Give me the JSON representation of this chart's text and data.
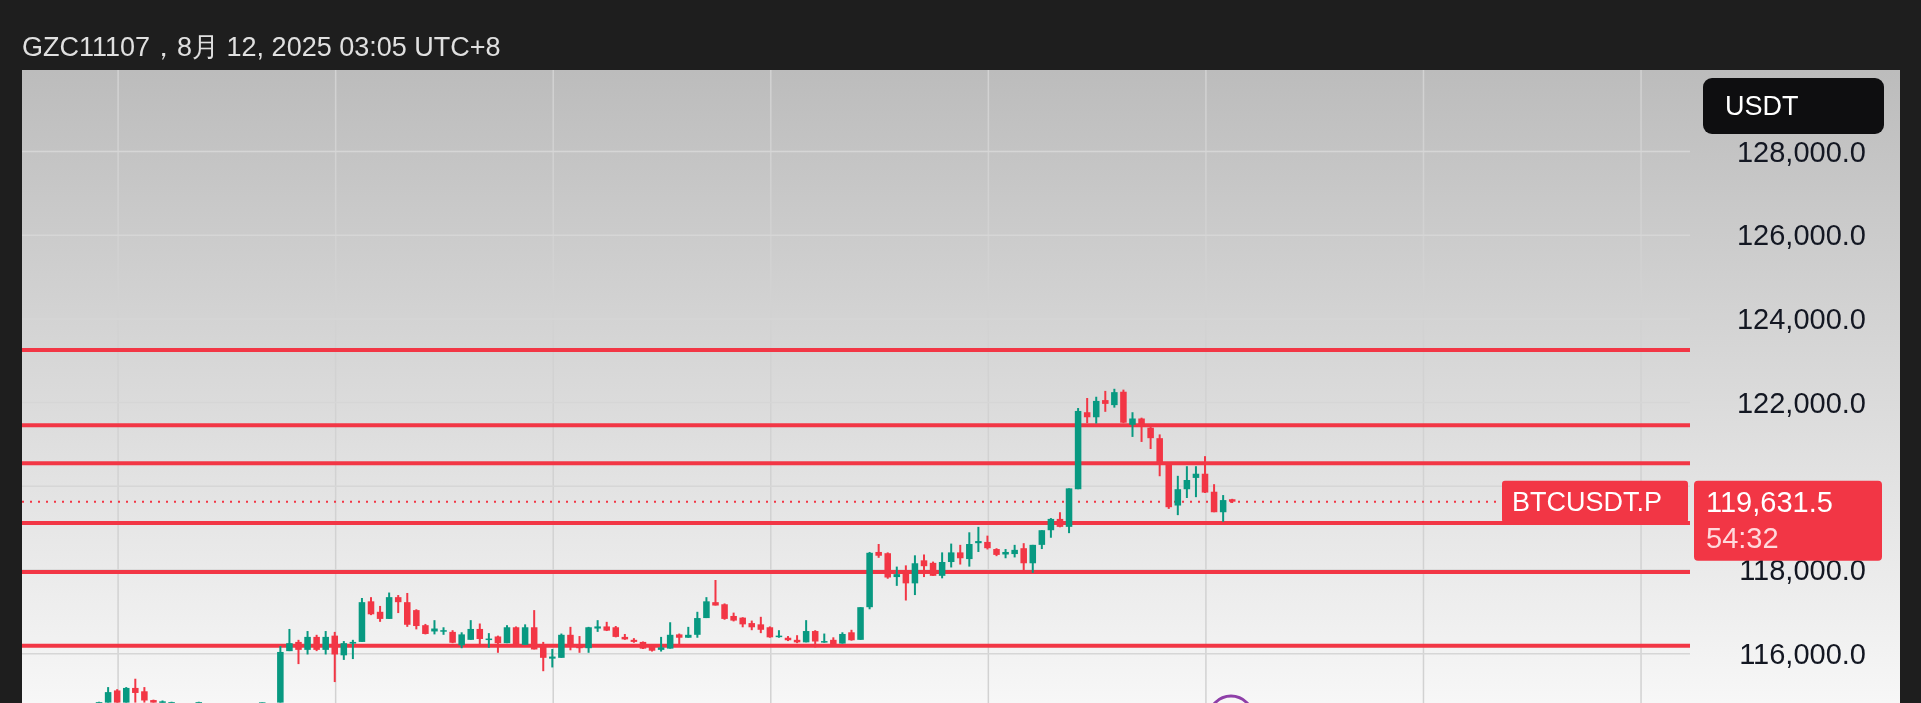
{
  "chart_data": {
    "type": "candlestick",
    "title": "GZC11107，8月 12, 2025 03:05 UTC+8",
    "ylabel": "USDT",
    "categories": [
      null,
      null,
      null,
      null,
      null,
      null,
      null,
      null,
      null,
      null,
      null,
      null,
      null,
      null,
      null,
      null,
      null,
      null,
      null,
      null,
      null,
      null,
      null,
      null,
      null,
      null,
      null,
      null,
      null,
      null,
      null,
      null,
      null,
      null,
      null,
      null,
      null,
      null,
      null,
      null,
      null,
      null,
      null,
      null,
      null,
      null,
      null,
      null,
      null,
      null,
      null,
      null,
      null,
      null,
      null,
      null,
      null,
      null,
      null,
      null,
      null,
      null,
      null,
      null,
      null,
      null,
      null,
      null,
      null,
      null,
      null,
      null,
      null,
      null,
      null,
      null,
      null,
      null,
      null,
      null,
      null,
      null,
      null,
      null,
      null,
      null,
      null,
      null,
      null,
      null,
      null,
      null,
      null,
      null,
      null,
      null,
      null,
      null,
      null,
      null,
      null,
      null,
      null,
      null,
      null,
      null,
      null,
      null,
      null,
      null,
      null,
      null,
      null,
      null,
      null,
      null,
      null,
      null,
      null,
      null,
      null,
      null,
      null,
      null,
      null,
      null,
      null,
      null,
      null,
      null,
      null,
      null,
      null,
      null,
      null,
      null,
      null,
      null,
      null,
      null,
      null,
      null,
      null,
      null,
      null,
      null,
      null,
      null,
      null,
      null,
      null,
      null,
      null,
      null,
      null,
      null,
      null,
      null,
      null,
      null,
      null,
      null,
      null,
      null,
      null,
      null,
      null,
      null,
      null,
      null,
      null,
      null,
      null,
      null,
      null,
      null,
      null,
      null,
      null,
      null,
      null,
      null,
      null,
      null
    ],
    "ohlc": [
      null,
      null,
      null,
      null,
      null,
      null,
      null,
      null,
      [
        114830,
        114850,
        114830,
        114840
      ],
      [
        114830,
        115200,
        114830,
        115080
      ],
      [
        115120,
        115150,
        114830,
        114830
      ],
      [
        114830,
        115200,
        114830,
        115180
      ],
      [
        115180,
        115400,
        114830,
        115060
      ],
      [
        115100,
        115200,
        114830,
        114880
      ],
      [
        114890,
        114900,
        114830,
        114830
      ],
      [
        114830,
        114880,
        114830,
        114860
      ],
      [
        114830,
        114850,
        114830,
        114840
      ],
      null,
      null,
      [
        114830,
        114850,
        114830,
        114840
      ],
      null,
      null,
      null,
      null,
      null,
      null,
      [
        114830,
        114840,
        114830,
        114835
      ],
      null,
      [
        114830,
        116180,
        114830,
        116040
      ],
      [
        116060,
        116590,
        116060,
        116250
      ],
      [
        116280,
        116330,
        115750,
        116090
      ],
      [
        116090,
        116540,
        115980,
        116400
      ],
      [
        116400,
        116450,
        116060,
        116090
      ],
      [
        116090,
        116540,
        115980,
        116400
      ],
      [
        116430,
        116520,
        115320,
        115980
      ],
      [
        115960,
        116300,
        115850,
        116250
      ],
      [
        116240,
        116330,
        115870,
        116280
      ],
      [
        116280,
        117330,
        116280,
        117230
      ],
      [
        117250,
        117350,
        116920,
        116940
      ],
      [
        117000,
        117140,
        116760,
        116830
      ],
      [
        116830,
        117460,
        116830,
        117350
      ],
      [
        117350,
        117400,
        116970,
        117230
      ],
      [
        117230,
        117450,
        116640,
        116690
      ],
      [
        117040,
        117060,
        116580,
        116660
      ],
      [
        116680,
        116710,
        116460,
        116470
      ],
      [
        116530,
        116800,
        116460,
        116600
      ],
      [
        116530,
        116630,
        116450,
        116560
      ],
      [
        116520,
        116560,
        116250,
        116260
      ],
      [
        116200,
        116510,
        116130,
        116460
      ],
      [
        116330,
        116800,
        116330,
        116590
      ],
      [
        116590,
        116720,
        116160,
        116350
      ],
      [
        116340,
        116490,
        116140,
        116360
      ],
      [
        116410,
        116430,
        116020,
        116250
      ],
      [
        116250,
        116680,
        116250,
        116630
      ],
      [
        116630,
        116650,
        116200,
        116210
      ],
      [
        116210,
        116700,
        116210,
        116630
      ],
      [
        116630,
        117040,
        116100,
        116100
      ],
      [
        116230,
        116280,
        115580,
        115900
      ],
      [
        115880,
        116110,
        115670,
        115930
      ],
      [
        115900,
        116480,
        115900,
        116450
      ],
      [
        116450,
        116640,
        116080,
        116230
      ],
      [
        116230,
        116420,
        116020,
        116130
      ],
      [
        116130,
        116640,
        116020,
        116630
      ],
      [
        116600,
        116800,
        116520,
        116650
      ],
      [
        116650,
        116760,
        116540,
        116550
      ],
      [
        116630,
        116660,
        116390,
        116400
      ],
      [
        116400,
        116470,
        116330,
        116340
      ],
      [
        116330,
        116370,
        116260,
        116280
      ],
      [
        116280,
        116290,
        116110,
        116120
      ],
      [
        116160,
        116230,
        116050,
        116070
      ],
      [
        116090,
        116400,
        116050,
        116150
      ],
      [
        116120,
        116750,
        116120,
        116450
      ],
      [
        116460,
        116480,
        116220,
        116380
      ],
      [
        116380,
        116640,
        116380,
        116450
      ],
      [
        116450,
        117000,
        116380,
        116850
      ],
      [
        116850,
        117350,
        116850,
        117250
      ],
      [
        117230,
        117760,
        117150,
        117150
      ],
      [
        117180,
        117200,
        116810,
        116830
      ],
      [
        116900,
        116980,
        116770,
        116790
      ],
      [
        116860,
        116870,
        116630,
        116700
      ],
      [
        116730,
        116790,
        116560,
        116630
      ],
      [
        116700,
        116880,
        116490,
        116570
      ],
      [
        116630,
        116650,
        116380,
        116390
      ],
      [
        116400,
        116560,
        116380,
        116430
      ],
      [
        116380,
        116420,
        116300,
        116320
      ],
      [
        116330,
        116440,
        116250,
        116270
      ],
      [
        116270,
        116800,
        116270,
        116540
      ],
      [
        116540,
        116560,
        116150,
        116290
      ],
      [
        116280,
        116480,
        116260,
        116300
      ],
      [
        116330,
        116390,
        116170,
        116230
      ],
      [
        116240,
        116510,
        116240,
        116470
      ],
      [
        116510,
        116570,
        116310,
        116320
      ],
      [
        116330,
        117110,
        116330,
        117110
      ],
      [
        117110,
        118430,
        117060,
        118410
      ],
      [
        118430,
        118620,
        118290,
        118340
      ],
      [
        118400,
        118420,
        117790,
        117820
      ],
      [
        117830,
        118080,
        117620,
        117900
      ],
      [
        117920,
        118110,
        117270,
        117680
      ],
      [
        117680,
        118350,
        117400,
        118160
      ],
      [
        118230,
        118370,
        117830,
        118090
      ],
      [
        118170,
        118200,
        117860,
        117860
      ],
      [
        117860,
        118420,
        117800,
        118190
      ],
      [
        118190,
        118630,
        118060,
        118420
      ],
      [
        118420,
        118600,
        118130,
        118280
      ],
      [
        118260,
        118900,
        118080,
        118620
      ],
      [
        118640,
        119030,
        118430,
        118690
      ],
      [
        118670,
        118820,
        118490,
        118520
      ],
      [
        118500,
        118520,
        118330,
        118360
      ],
      [
        118370,
        118500,
        118280,
        118430
      ],
      [
        118380,
        118600,
        118300,
        118480
      ],
      [
        118520,
        118640,
        117930,
        118160
      ],
      [
        118160,
        118600,
        117930,
        118600
      ],
      [
        118600,
        118950,
        118500,
        118950
      ],
      [
        118950,
        119240,
        118770,
        119220
      ],
      [
        119220,
        119380,
        119020,
        119030
      ],
      [
        119030,
        119950,
        118880,
        119950
      ],
      [
        119930,
        121870,
        119930,
        121800
      ],
      [
        121770,
        122110,
        121510,
        121650
      ],
      [
        121650,
        122140,
        121500,
        122040
      ],
      [
        122060,
        122280,
        121780,
        121970
      ],
      [
        121940,
        122330,
        121880,
        122250
      ],
      [
        122260,
        122310,
        121510,
        121520
      ],
      [
        121470,
        121770,
        121180,
        121620
      ],
      [
        121620,
        121640,
        121060,
        121420
      ],
      [
        121400,
        121420,
        120890,
        121150
      ],
      [
        121150,
        121240,
        120240,
        120550
      ],
      [
        120510,
        120550,
        119460,
        119500
      ],
      [
        119540,
        120250,
        119310,
        119930
      ],
      [
        119930,
        120480,
        119720,
        120150
      ],
      [
        120200,
        120480,
        119740,
        120300
      ],
      [
        120300,
        120720,
        119840,
        119850
      ],
      [
        119870,
        120050,
        119380,
        119380
      ],
      [
        119380,
        119790,
        119150,
        119670
      ],
      [
        119690,
        119700,
        119600,
        119631.5
      ],
      null,
      null,
      null,
      null,
      null,
      null,
      null,
      null,
      null,
      null,
      null,
      null,
      null,
      null,
      null,
      null,
      null,
      null,
      null,
      null,
      null,
      null,
      null,
      null,
      null,
      null,
      null,
      null,
      null,
      null,
      null,
      null,
      null,
      null,
      null,
      null,
      null,
      null,
      null,
      null,
      null,
      null,
      null,
      null,
      null,
      null,
      null,
      null,
      null,
      null
    ],
    "ylim": [
      114820,
      129950
    ],
    "yticks": [
      {
        "value": 116000,
        "label": "116,000.0"
      },
      {
        "value": 118000,
        "label": "118,000.0"
      },
      {
        "value": 120000,
        "label": null
      },
      {
        "value": 122000,
        "label": "122,000.0"
      },
      {
        "value": 124000,
        "label": "124,000.0"
      },
      {
        "value": 126000,
        "label": "126,000.0"
      },
      {
        "value": 128000,
        "label": "128,000.0"
      }
    ],
    "ref_lines": [
      {
        "axis": "y",
        "value": 123260,
        "color": "#f23645"
      },
      {
        "axis": "y",
        "value": 121460,
        "color": "#f23645"
      },
      {
        "axis": "y",
        "value": 120550,
        "color": "#f23645"
      },
      {
        "axis": "y",
        "value": 119120,
        "color": "#f23645"
      },
      {
        "axis": "y",
        "value": 117950,
        "color": "#f23645"
      },
      {
        "axis": "y",
        "value": 116190,
        "color": "#f23645"
      },
      {
        "axis": "y",
        "value": 119631.5,
        "label": "BTCUSDT.P",
        "color": "#f23645",
        "line_style": "dotted"
      }
    ],
    "annotations": [
      "119,631.5",
      "54:32"
    ],
    "grid": true,
    "tick_labels": "y"
  }
}
